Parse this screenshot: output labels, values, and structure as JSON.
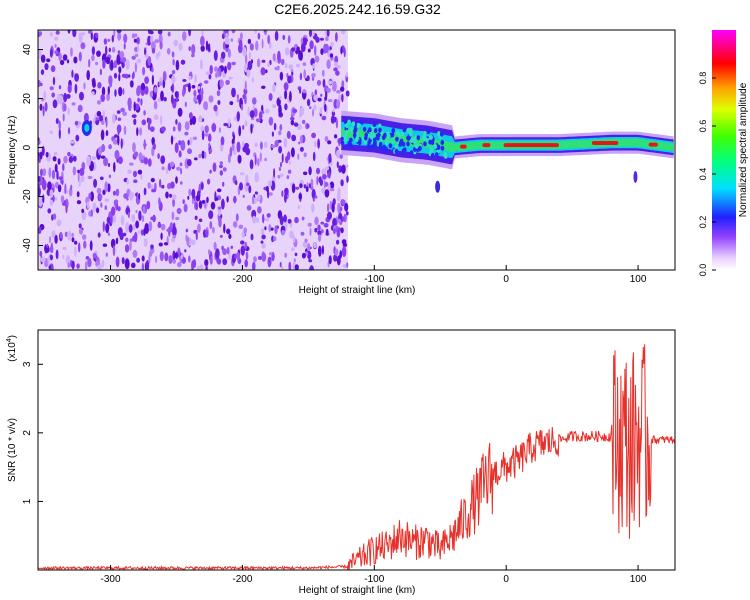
{
  "title": "C2E6.2025.242.16.59.G32",
  "chart_data": [
    {
      "type": "heatmap",
      "title": "C2E6.2025.242.16.59.G32",
      "xlabel": "Height of straight line (km)",
      "ylabel": "Frequency (Hz)",
      "xlim": [
        -355,
        128
      ],
      "ylim": [
        -50,
        48
      ],
      "xticks": [
        -300,
        -200,
        -100,
        0,
        100
      ],
      "yticks": [
        -40,
        -20,
        0,
        20,
        40
      ],
      "noise_region_x": [
        -355,
        -120
      ],
      "signal_track": [
        {
          "x": -125,
          "freq": 6
        },
        {
          "x": -100,
          "freq": 5
        },
        {
          "x": -80,
          "freq": 3
        },
        {
          "x": -60,
          "freq": 2
        },
        {
          "x": -40,
          "freq": 0
        },
        {
          "x": -20,
          "freq": 1
        },
        {
          "x": 0,
          "freq": 1
        },
        {
          "x": 40,
          "freq": 1
        },
        {
          "x": 80,
          "freq": 2
        },
        {
          "x": 100,
          "freq": 2
        },
        {
          "x": 128,
          "freq": 0
        }
      ],
      "colorbar": {
        "label": "Normalized spectral amplitude",
        "range": [
          0,
          1
        ],
        "ticks": [
          "0.0",
          "0.2",
          "0.4",
          "0.6",
          "0.8"
        ]
      },
      "grid": false
    },
    {
      "type": "line",
      "xlabel": "Height of straight line (km)",
      "ylabel": "SNR (10 * v/v)",
      "multiplier_label": "(x10",
      "multiplier_exp": "4",
      "xlim": [
        -355,
        128
      ],
      "ylim": [
        0,
        3.5
      ],
      "xticks": [
        -300,
        -200,
        -100,
        0,
        100
      ],
      "yticks": [
        1,
        2,
        3
      ],
      "color": "#e8302a",
      "series": [
        {
          "x": [
            -355,
            -300,
            -250,
            -200,
            -150,
            -120,
            -100,
            -90,
            -80,
            -70,
            -60,
            -50,
            -40,
            -30,
            -20,
            -15,
            -10,
            0,
            10,
            20,
            30,
            40,
            50,
            60,
            70,
            80,
            90,
            95,
            100,
            105,
            110,
            128
          ],
          "y": [
            0.03,
            0.03,
            0.03,
            0.03,
            0.03,
            0.05,
            0.3,
            0.35,
            0.5,
            0.4,
            0.45,
            0.3,
            0.5,
            0.8,
            1.1,
            1.3,
            1.4,
            1.5,
            1.6,
            1.8,
            1.85,
            1.9,
            1.95,
            1.95,
            1.95,
            1.95,
            1.9,
            1.8,
            2.0,
            1.9,
            1.9,
            1.9
          ]
        }
      ],
      "grid": false
    }
  ]
}
